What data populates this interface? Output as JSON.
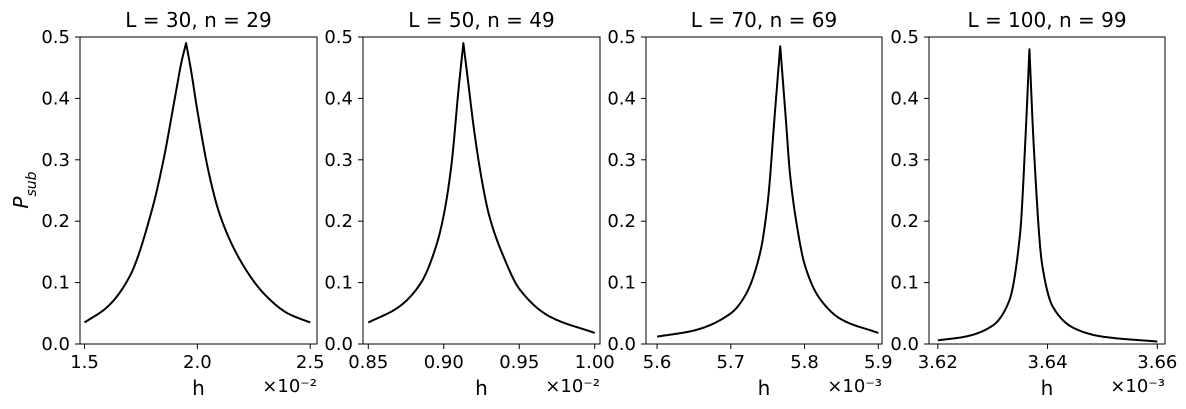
{
  "chart_data": [
    {
      "type": "line",
      "title": "L = 30, n = 29",
      "xlabel": "h",
      "ylabel": "P_sub",
      "x_exponent": "×10⁻²",
      "xlim": [
        1.48,
        2.53
      ],
      "ylim": [
        0.0,
        0.5
      ],
      "xticks": [
        1.5,
        2.0,
        2.5
      ],
      "xtick_labels": [
        "1.5",
        "2.0",
        "2.5"
      ],
      "yticks": [
        0.0,
        0.1,
        0.2,
        0.3,
        0.4,
        0.5
      ],
      "ytick_labels": [
        "0.0",
        "0.1",
        "0.2",
        "0.3",
        "0.4",
        "0.5"
      ],
      "peak": {
        "x": 1.95,
        "y": 0.49
      },
      "x": [
        1.5,
        1.6,
        1.7,
        1.8,
        1.85,
        1.9,
        1.93,
        1.95,
        1.97,
        2.0,
        2.05,
        2.1,
        2.2,
        2.3,
        2.4,
        2.5
      ],
      "y": [
        0.035,
        0.06,
        0.11,
        0.22,
        0.3,
        0.4,
        0.46,
        0.49,
        0.45,
        0.38,
        0.28,
        0.21,
        0.13,
        0.08,
        0.05,
        0.035
      ]
    },
    {
      "type": "line",
      "title": "L = 50, n = 49",
      "xlabel": "h",
      "ylabel": "",
      "x_exponent": "×10⁻²",
      "xlim": [
        0.8465,
        1.0035
      ],
      "ylim": [
        0.0,
        0.5
      ],
      "xticks": [
        0.85,
        0.9,
        0.95,
        1.0
      ],
      "xtick_labels": [
        "0.85",
        "0.90",
        "0.95",
        "1.00"
      ],
      "yticks": [
        0.0,
        0.1,
        0.2,
        0.3,
        0.4,
        0.5
      ],
      "ytick_labels": [
        "0.0",
        "0.1",
        "0.2",
        "0.3",
        "0.4",
        "0.5"
      ],
      "peak": {
        "x": 0.913,
        "y": 0.49
      },
      "x": [
        0.85,
        0.87,
        0.885,
        0.895,
        0.9,
        0.905,
        0.91,
        0.913,
        0.916,
        0.92,
        0.925,
        0.93,
        0.94,
        0.95,
        0.97,
        1.0
      ],
      "y": [
        0.035,
        0.06,
        0.1,
        0.16,
        0.21,
        0.29,
        0.42,
        0.49,
        0.43,
        0.35,
        0.27,
        0.21,
        0.14,
        0.09,
        0.045,
        0.018
      ]
    },
    {
      "type": "line",
      "title": "L = 70, n = 69",
      "xlabel": "h",
      "ylabel": "",
      "x_exponent": "×10⁻³",
      "xlim": [
        5.585,
        5.905
      ],
      "ylim": [
        0.0,
        0.5
      ],
      "xticks": [
        5.6,
        5.7,
        5.8,
        5.9
      ],
      "xtick_labels": [
        "5.6",
        "5.7",
        "5.8",
        "5.9"
      ],
      "yticks": [
        0.0,
        0.1,
        0.2,
        0.3,
        0.4,
        0.5
      ],
      "ytick_labels": [
        "0.0",
        "0.1",
        "0.2",
        "0.3",
        "0.4",
        "0.5"
      ],
      "peak": {
        "x": 5.767,
        "y": 0.485
      },
      "x": [
        5.6,
        5.65,
        5.7,
        5.72,
        5.74,
        5.75,
        5.76,
        5.767,
        5.775,
        5.78,
        5.79,
        5.8,
        5.82,
        5.85,
        5.9
      ],
      "y": [
        0.012,
        0.022,
        0.05,
        0.08,
        0.15,
        0.23,
        0.38,
        0.485,
        0.36,
        0.28,
        0.19,
        0.13,
        0.075,
        0.04,
        0.018
      ]
    },
    {
      "type": "line",
      "title": "L = 100, n = 99",
      "xlabel": "h",
      "ylabel": "",
      "x_exponent": "×10⁻³",
      "xlim": [
        3.6184,
        3.6614
      ],
      "ylim": [
        0.0,
        0.5
      ],
      "xticks": [
        3.62,
        3.64,
        3.66
      ],
      "xtick_labels": [
        "3.62",
        "3.64",
        "3.66"
      ],
      "yticks": [
        0.0,
        0.1,
        0.2,
        0.3,
        0.4,
        0.5
      ],
      "ytick_labels": [
        "0.0",
        "0.1",
        "0.2",
        "0.3",
        "0.4",
        "0.5"
      ],
      "peak": {
        "x": 3.6367,
        "y": 0.48
      },
      "x": [
        3.62,
        3.625,
        3.63,
        3.633,
        3.635,
        3.636,
        3.6367,
        3.6375,
        3.639,
        3.641,
        3.645,
        3.65,
        3.66
      ],
      "y": [
        0.006,
        0.012,
        0.03,
        0.07,
        0.18,
        0.34,
        0.48,
        0.32,
        0.13,
        0.06,
        0.025,
        0.012,
        0.004
      ]
    }
  ]
}
